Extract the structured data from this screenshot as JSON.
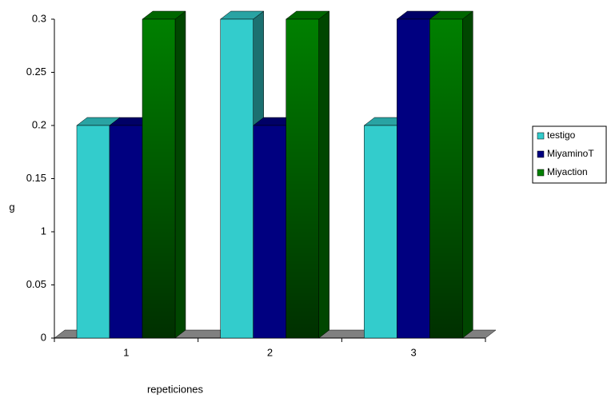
{
  "chart_data": {
    "type": "bar3d",
    "x_label": "repeticiones",
    "y_label": "g",
    "categories": [
      "1",
      "2",
      "3"
    ],
    "series": [
      {
        "name": "testigo",
        "color": "#33cccc",
        "values": [
          0.2,
          0.3,
          0.2
        ]
      },
      {
        "name": "MiyaminoT",
        "color": "#000080",
        "values": [
          0.2,
          0.2,
          0.3
        ]
      },
      {
        "name": "Miyaction",
        "color": "#008000",
        "values": [
          0.3,
          0.3,
          0.3
        ]
      }
    ],
    "ylim": [
      0,
      0.3
    ],
    "yticks": [
      0,
      0.05,
      {
        "value": 0.1,
        "label": "1"
      },
      0.15,
      0.2,
      0.25,
      0.3
    ],
    "grid": false
  }
}
